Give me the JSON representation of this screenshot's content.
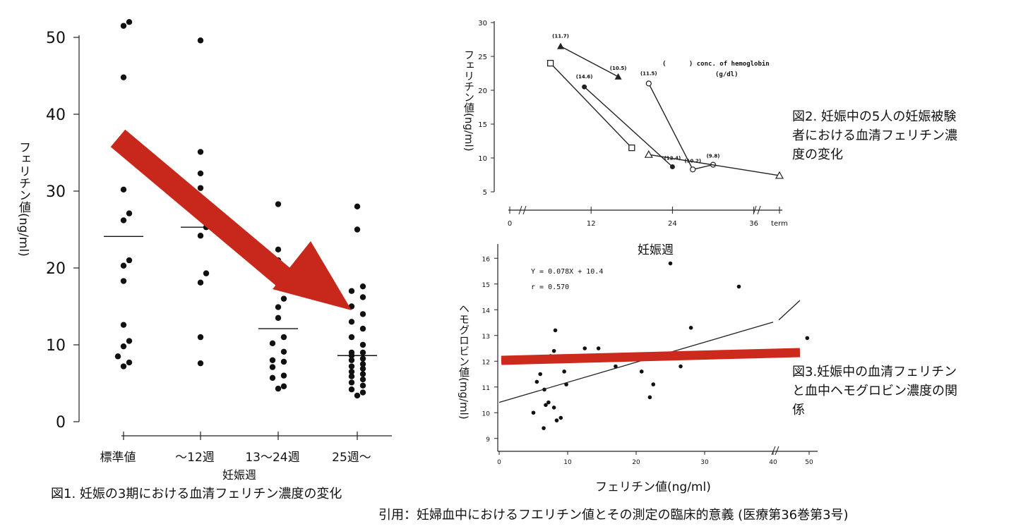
{
  "fig1": {
    "ylabel": "フェリチン値(ng/ml)",
    "xlabel": "妊娠週",
    "caption": "図1. 妊娠の3期における血清フェリチン濃度の変化",
    "yticks": [
      "0",
      "10",
      "20",
      "30",
      "40",
      "50"
    ],
    "categories": [
      "標準値",
      "〜12週",
      "13〜24週",
      "25週〜"
    ]
  },
  "fig2": {
    "ylabel": "フェリチン値(ng/ml)",
    "xlabel": "妊娠週",
    "caption_lines": [
      "図2. 妊娠中の5人の妊娠被験",
      "者における血清フェリチン濃",
      "度の変化"
    ],
    "legend_line1": "(      ) conc. of hemoglobin",
    "legend_line2": "(g/dl)",
    "yticks": [
      "5",
      "10",
      "15",
      "20",
      "25",
      "30"
    ],
    "xticks": [
      "0",
      "12",
      "24",
      "36",
      "term"
    ]
  },
  "fig3": {
    "ylabel": "ヘモグロビン値(mg/ml)",
    "xlabel": "フェリチン値(ng/ml)",
    "caption_lines": [
      "図3.妊娠中の血清フェリチン",
      "と血中ヘモグロビン濃度の関",
      "係"
    ],
    "eq_line1": "Y = 0.078X + 10.4",
    "eq_line2": "r = 0.570",
    "yticks": [
      "9",
      "10",
      "11",
      "12",
      "13",
      "14",
      "15",
      "16"
    ],
    "xticks": [
      "0",
      "10",
      "20",
      "30",
      "40",
      "50"
    ]
  },
  "citation": "引用：妊婦血中におけるフエリチン値とその測定の臨床的意義 (医療第36巻第3号)",
  "colors": {
    "arrow": "#c8281b",
    "trend_line": "#cc2a1c",
    "ink": "#111111"
  },
  "chart_data": [
    {
      "type": "scatter",
      "ylabel": "フェリチン値(ng/ml)",
      "xlabel": "妊娠週",
      "ylim": [
        0,
        50
      ],
      "categories": [
        "標準値",
        "〜12週",
        "13〜24週",
        "25週〜"
      ],
      "series": [
        {
          "values": [
            52,
            51.5,
            44.8,
            30.2,
            27.1,
            26.2,
            21,
            20.3,
            18.3,
            12.6,
            10.5,
            9.8,
            8.5,
            7.7,
            7.2
          ]
        },
        {
          "values": [
            49.6,
            35.1,
            32.3,
            30.4,
            25.3,
            24.2,
            19.3,
            18.1,
            11,
            7.6
          ]
        },
        {
          "values": [
            28.3,
            22.4,
            21,
            19.2,
            18.1,
            17.6,
            16,
            14.9,
            13.5,
            11,
            10.2,
            9.1,
            8,
            7.8,
            7.1,
            6,
            5.7,
            4.6,
            4.3
          ]
        },
        {
          "values": [
            28,
            25,
            17.6,
            17,
            16.2,
            15,
            14,
            13,
            12.1,
            11,
            10,
            9,
            9,
            8.6,
            8.2,
            8,
            7.5,
            7.2,
            6.9,
            6.5,
            6.2,
            5.9,
            5.5,
            5.1,
            4.7,
            4.2,
            3.8,
            3.4
          ]
        }
      ],
      "means": [
        24.1,
        25.3,
        12.1,
        8.6
      ],
      "arrow_annotation": "decreasing trend"
    },
    {
      "type": "line",
      "xlabel": "妊娠週",
      "ylabel": "フェリチン値(ng/ml)",
      "xlim": [
        0,
        "term"
      ],
      "ylim": [
        5,
        30
      ],
      "series": [
        {
          "marker": "square-open",
          "points": [
            [
              6,
              24
            ],
            [
              18,
              11.5
            ]
          ]
        },
        {
          "marker": "triangle-filled",
          "points": [
            [
              7.5,
              26.5
            ],
            [
              16,
              22
            ]
          ],
          "labels": [
            "(11.7)",
            "(10.5)"
          ]
        },
        {
          "marker": "circle-filled",
          "points": [
            [
              11,
              20.5
            ],
            [
              24,
              8.7
            ]
          ],
          "labels": [
            "(14.6)",
            "(12.4)"
          ]
        },
        {
          "marker": "circle-open",
          "points": [
            [
              20.5,
              21
            ],
            [
              27,
              8.3
            ],
            [
              30,
              9
            ]
          ],
          "labels": [
            "(11.5)",
            "(10.2)",
            "(9.8)"
          ]
        },
        {
          "marker": "triangle-open",
          "points": [
            [
              20.5,
              10.5
            ],
            [
              "term",
              7.4
            ]
          ]
        }
      ]
    },
    {
      "type": "scatter",
      "xlabel": "フェリチン値(ng/ml)",
      "ylabel": "ヘモグロビン値(mg/ml)",
      "xlim": [
        0,
        50
      ],
      "ylim": [
        9,
        16
      ],
      "regression": {
        "slope": 0.078,
        "intercept": 10.4,
        "r": 0.57
      },
      "points": [
        [
          5,
          10
        ],
        [
          5.5,
          11.2
        ],
        [
          6,
          11.5
        ],
        [
          6.5,
          9.4
        ],
        [
          6.6,
          10.9
        ],
        [
          6.8,
          10.3
        ],
        [
          7.2,
          10.4
        ],
        [
          7.5,
          12.2
        ],
        [
          8,
          10.2
        ],
        [
          8,
          12.4
        ],
        [
          8.2,
          13.2
        ],
        [
          8.4,
          9.7
        ],
        [
          9,
          9.8
        ],
        [
          9.5,
          11.6
        ],
        [
          9.8,
          11.1
        ],
        [
          12.5,
          12.5
        ],
        [
          14.5,
          12.5
        ],
        [
          17,
          11.8
        ],
        [
          20.8,
          11.6
        ],
        [
          22,
          10.6
        ],
        [
          22.5,
          11.1
        ],
        [
          25,
          15.8
        ],
        [
          26.5,
          11.8
        ],
        [
          28,
          13.3
        ],
        [
          35,
          14.9
        ],
        [
          49.5,
          12.9
        ]
      ],
      "red_annotation_line": "flat at about 12"
    }
  ]
}
